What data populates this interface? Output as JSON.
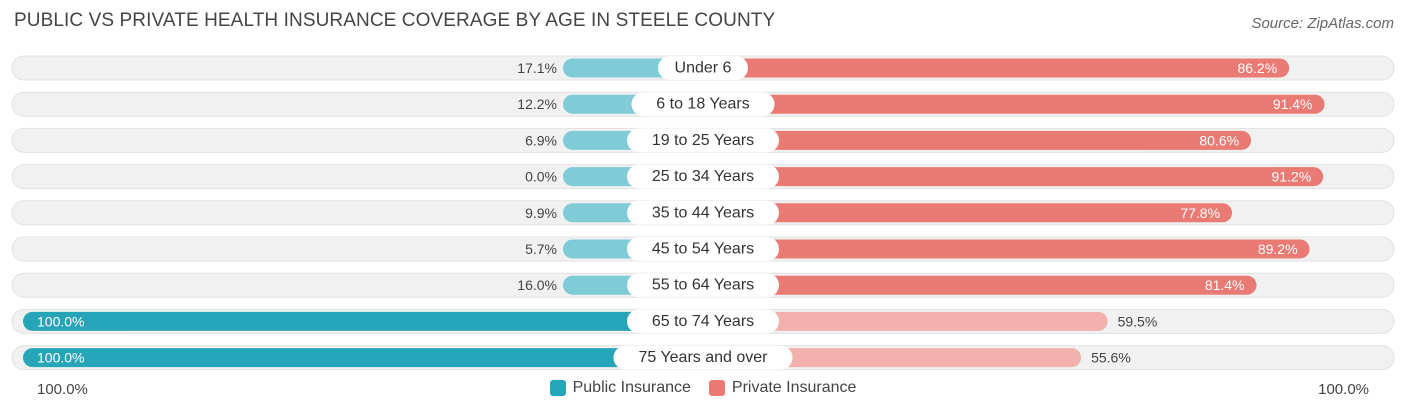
{
  "title": "PUBLIC VS PRIVATE HEALTH INSURANCE COVERAGE BY AGE IN STEELE COUNTY",
  "source": "Source: ZipAtlas.com",
  "colors": {
    "public": "#26a5b9",
    "public_light": "#7fcbd6",
    "private": "#ea7a74",
    "private_light": "#f3b1ad",
    "track": "#eeeeee"
  },
  "axis": {
    "left_label": "100.0%",
    "right_label": "100.0%"
  },
  "legend": {
    "public_label": "Public Insurance",
    "private_label": "Private Insurance"
  },
  "chart_data": {
    "type": "bar",
    "title": "PUBLIC VS PRIVATE HEALTH INSURANCE COVERAGE BY AGE IN STEELE COUNTY",
    "categories": [
      "Under 6",
      "6 to 18 Years",
      "19 to 25 Years",
      "25 to 34 Years",
      "35 to 44 Years",
      "45 to 54 Years",
      "55 to 64 Years",
      "65 to 74 Years",
      "75 Years and over"
    ],
    "series": [
      {
        "name": "Public Insurance",
        "values": [
          17.1,
          12.2,
          6.9,
          0.0,
          9.9,
          5.7,
          16.0,
          100.0,
          100.0
        ],
        "labels": [
          "17.1%",
          "12.2%",
          "6.9%",
          "0.0%",
          "9.9%",
          "5.7%",
          "16.0%",
          "100.0%",
          "100.0%"
        ]
      },
      {
        "name": "Private Insurance",
        "values": [
          86.2,
          91.4,
          80.6,
          91.2,
          77.8,
          89.2,
          81.4,
          59.5,
          55.6
        ],
        "labels": [
          "86.2%",
          "91.4%",
          "80.6%",
          "91.2%",
          "77.8%",
          "89.2%",
          "81.4%",
          "59.5%",
          "55.6%"
        ]
      }
    ],
    "xlim": [
      -100,
      100
    ],
    "legend_position": "bottom-center"
  }
}
